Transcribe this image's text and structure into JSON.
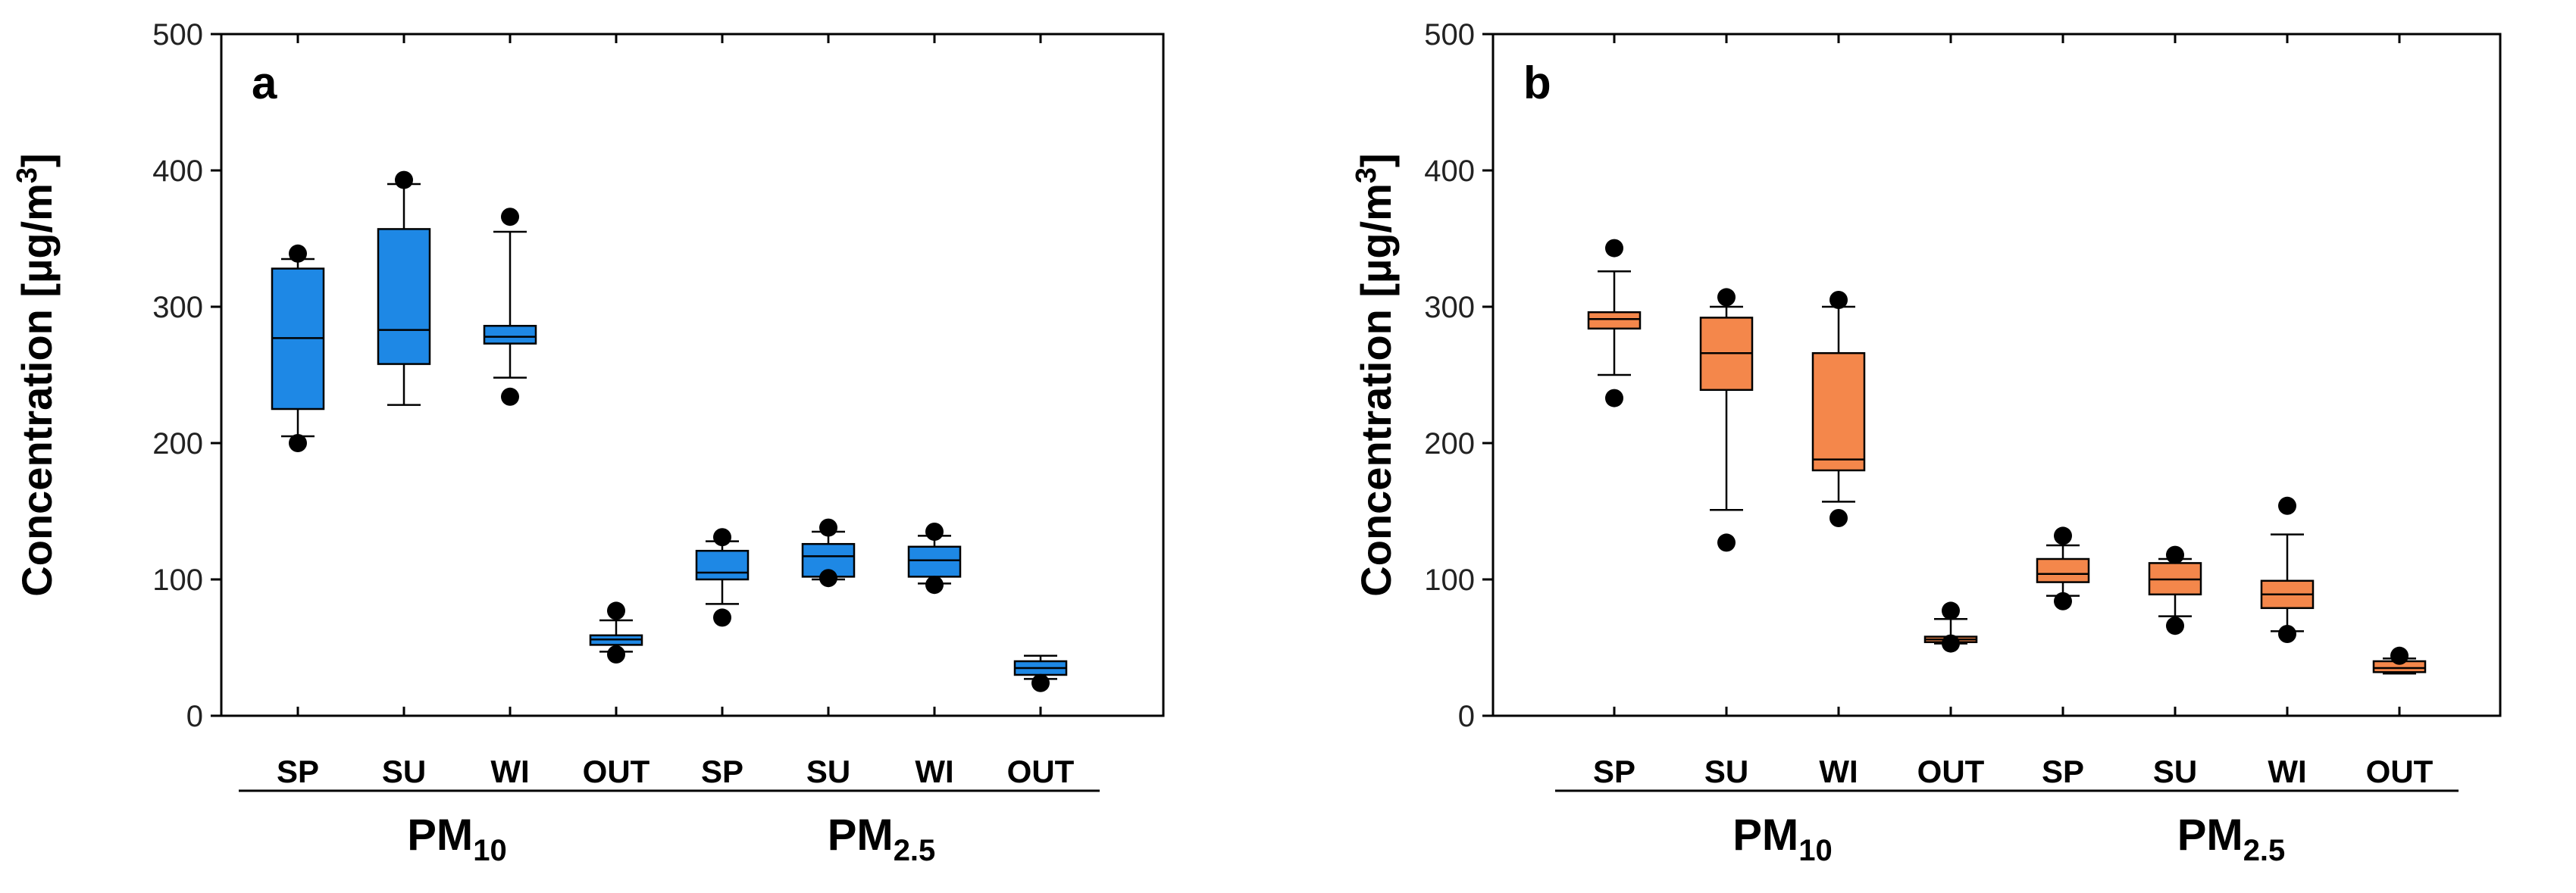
{
  "chart_data": [
    {
      "type": "box",
      "panel_label": "a",
      "ylabel": "Concentration [µg/m3]",
      "ylabel_parts": {
        "main": "Concentration [µg/m",
        "sup": "3",
        "end": "]"
      },
      "ylim": [
        0,
        500
      ],
      "yticks": [
        "0",
        "100",
        "200",
        "300",
        "400",
        "500"
      ],
      "box_color": "#1e88e5",
      "categories": [
        "SP",
        "SU",
        "WI",
        "OUT",
        "SP",
        "SU",
        "WI",
        "OUT"
      ],
      "groups": [
        {
          "name": "PM10",
          "base": "PM",
          "sub": "10",
          "span": [
            0,
            3
          ]
        },
        {
          "name": "PM2.5",
          "base": "PM",
          "sub": "2.5",
          "span": [
            4,
            7
          ]
        }
      ],
      "boxes": [
        {
          "q1": 225,
          "median": 277,
          "q3": 328,
          "wlow": 205,
          "whigh": 335,
          "outliers": [
            339,
            200
          ]
        },
        {
          "q1": 258,
          "median": 283,
          "q3": 357,
          "wlow": 228,
          "whigh": 390,
          "outliers": [
            393
          ]
        },
        {
          "q1": 273,
          "median": 278,
          "q3": 286,
          "wlow": 248,
          "whigh": 355,
          "outliers": [
            366,
            234
          ]
        },
        {
          "q1": 52,
          "median": 56,
          "q3": 59,
          "wlow": 47,
          "whigh": 70,
          "outliers": [
            77,
            45
          ]
        },
        {
          "q1": 100,
          "median": 105,
          "q3": 121,
          "wlow": 82,
          "whigh": 128,
          "outliers": [
            131,
            72
          ]
        },
        {
          "q1": 102,
          "median": 117,
          "q3": 126,
          "wlow": 100,
          "whigh": 135,
          "outliers": [
            138,
            101
          ]
        },
        {
          "q1": 102,
          "median": 114,
          "q3": 124,
          "wlow": 97,
          "whigh": 132,
          "outliers": [
            135,
            96
          ]
        },
        {
          "q1": 30,
          "median": 35,
          "q3": 40,
          "wlow": 27,
          "whigh": 44,
          "outliers": [
            24
          ]
        }
      ]
    },
    {
      "type": "box",
      "panel_label": "b",
      "ylabel": "Concentration [µg/m3]",
      "ylabel_parts": {
        "main": "Concentration [µg/m",
        "sup": "3",
        "end": "]"
      },
      "ylim": [
        0,
        500
      ],
      "yticks": [
        "0",
        "100",
        "200",
        "300",
        "400",
        "500"
      ],
      "box_color": "#f4874b",
      "categories": [
        "SP",
        "SU",
        "WI",
        "OUT",
        "SP",
        "SU",
        "WI",
        "OUT"
      ],
      "groups": [
        {
          "name": "PM10",
          "base": "PM",
          "sub": "10",
          "span": [
            0,
            3
          ]
        },
        {
          "name": "PM2.5",
          "base": "PM",
          "sub": "2.5",
          "span": [
            4,
            7
          ]
        }
      ],
      "boxes": [
        {
          "q1": 284,
          "median": 291,
          "q3": 296,
          "wlow": 250,
          "whigh": 326,
          "outliers": [
            343,
            233
          ]
        },
        {
          "q1": 239,
          "median": 266,
          "q3": 292,
          "wlow": 151,
          "whigh": 300,
          "outliers": [
            307,
            127
          ]
        },
        {
          "q1": 180,
          "median": 188,
          "q3": 266,
          "wlow": 157,
          "whigh": 300,
          "outliers": [
            305,
            145
          ]
        },
        {
          "q1": 54,
          "median": 56,
          "q3": 58,
          "wlow": 53,
          "whigh": 71,
          "outliers": [
            77,
            53
          ]
        },
        {
          "q1": 98,
          "median": 104,
          "q3": 115,
          "wlow": 88,
          "whigh": 125,
          "outliers": [
            132,
            84
          ]
        },
        {
          "q1": 89,
          "median": 100,
          "q3": 112,
          "wlow": 73,
          "whigh": 115,
          "outliers": [
            118,
            66
          ]
        },
        {
          "q1": 79,
          "median": 89,
          "q3": 99,
          "wlow": 62,
          "whigh": 133,
          "outliers": [
            154,
            60
          ]
        },
        {
          "q1": 32,
          "median": 35,
          "q3": 40,
          "wlow": 31,
          "whigh": 42,
          "outliers": [
            44
          ]
        }
      ]
    }
  ]
}
